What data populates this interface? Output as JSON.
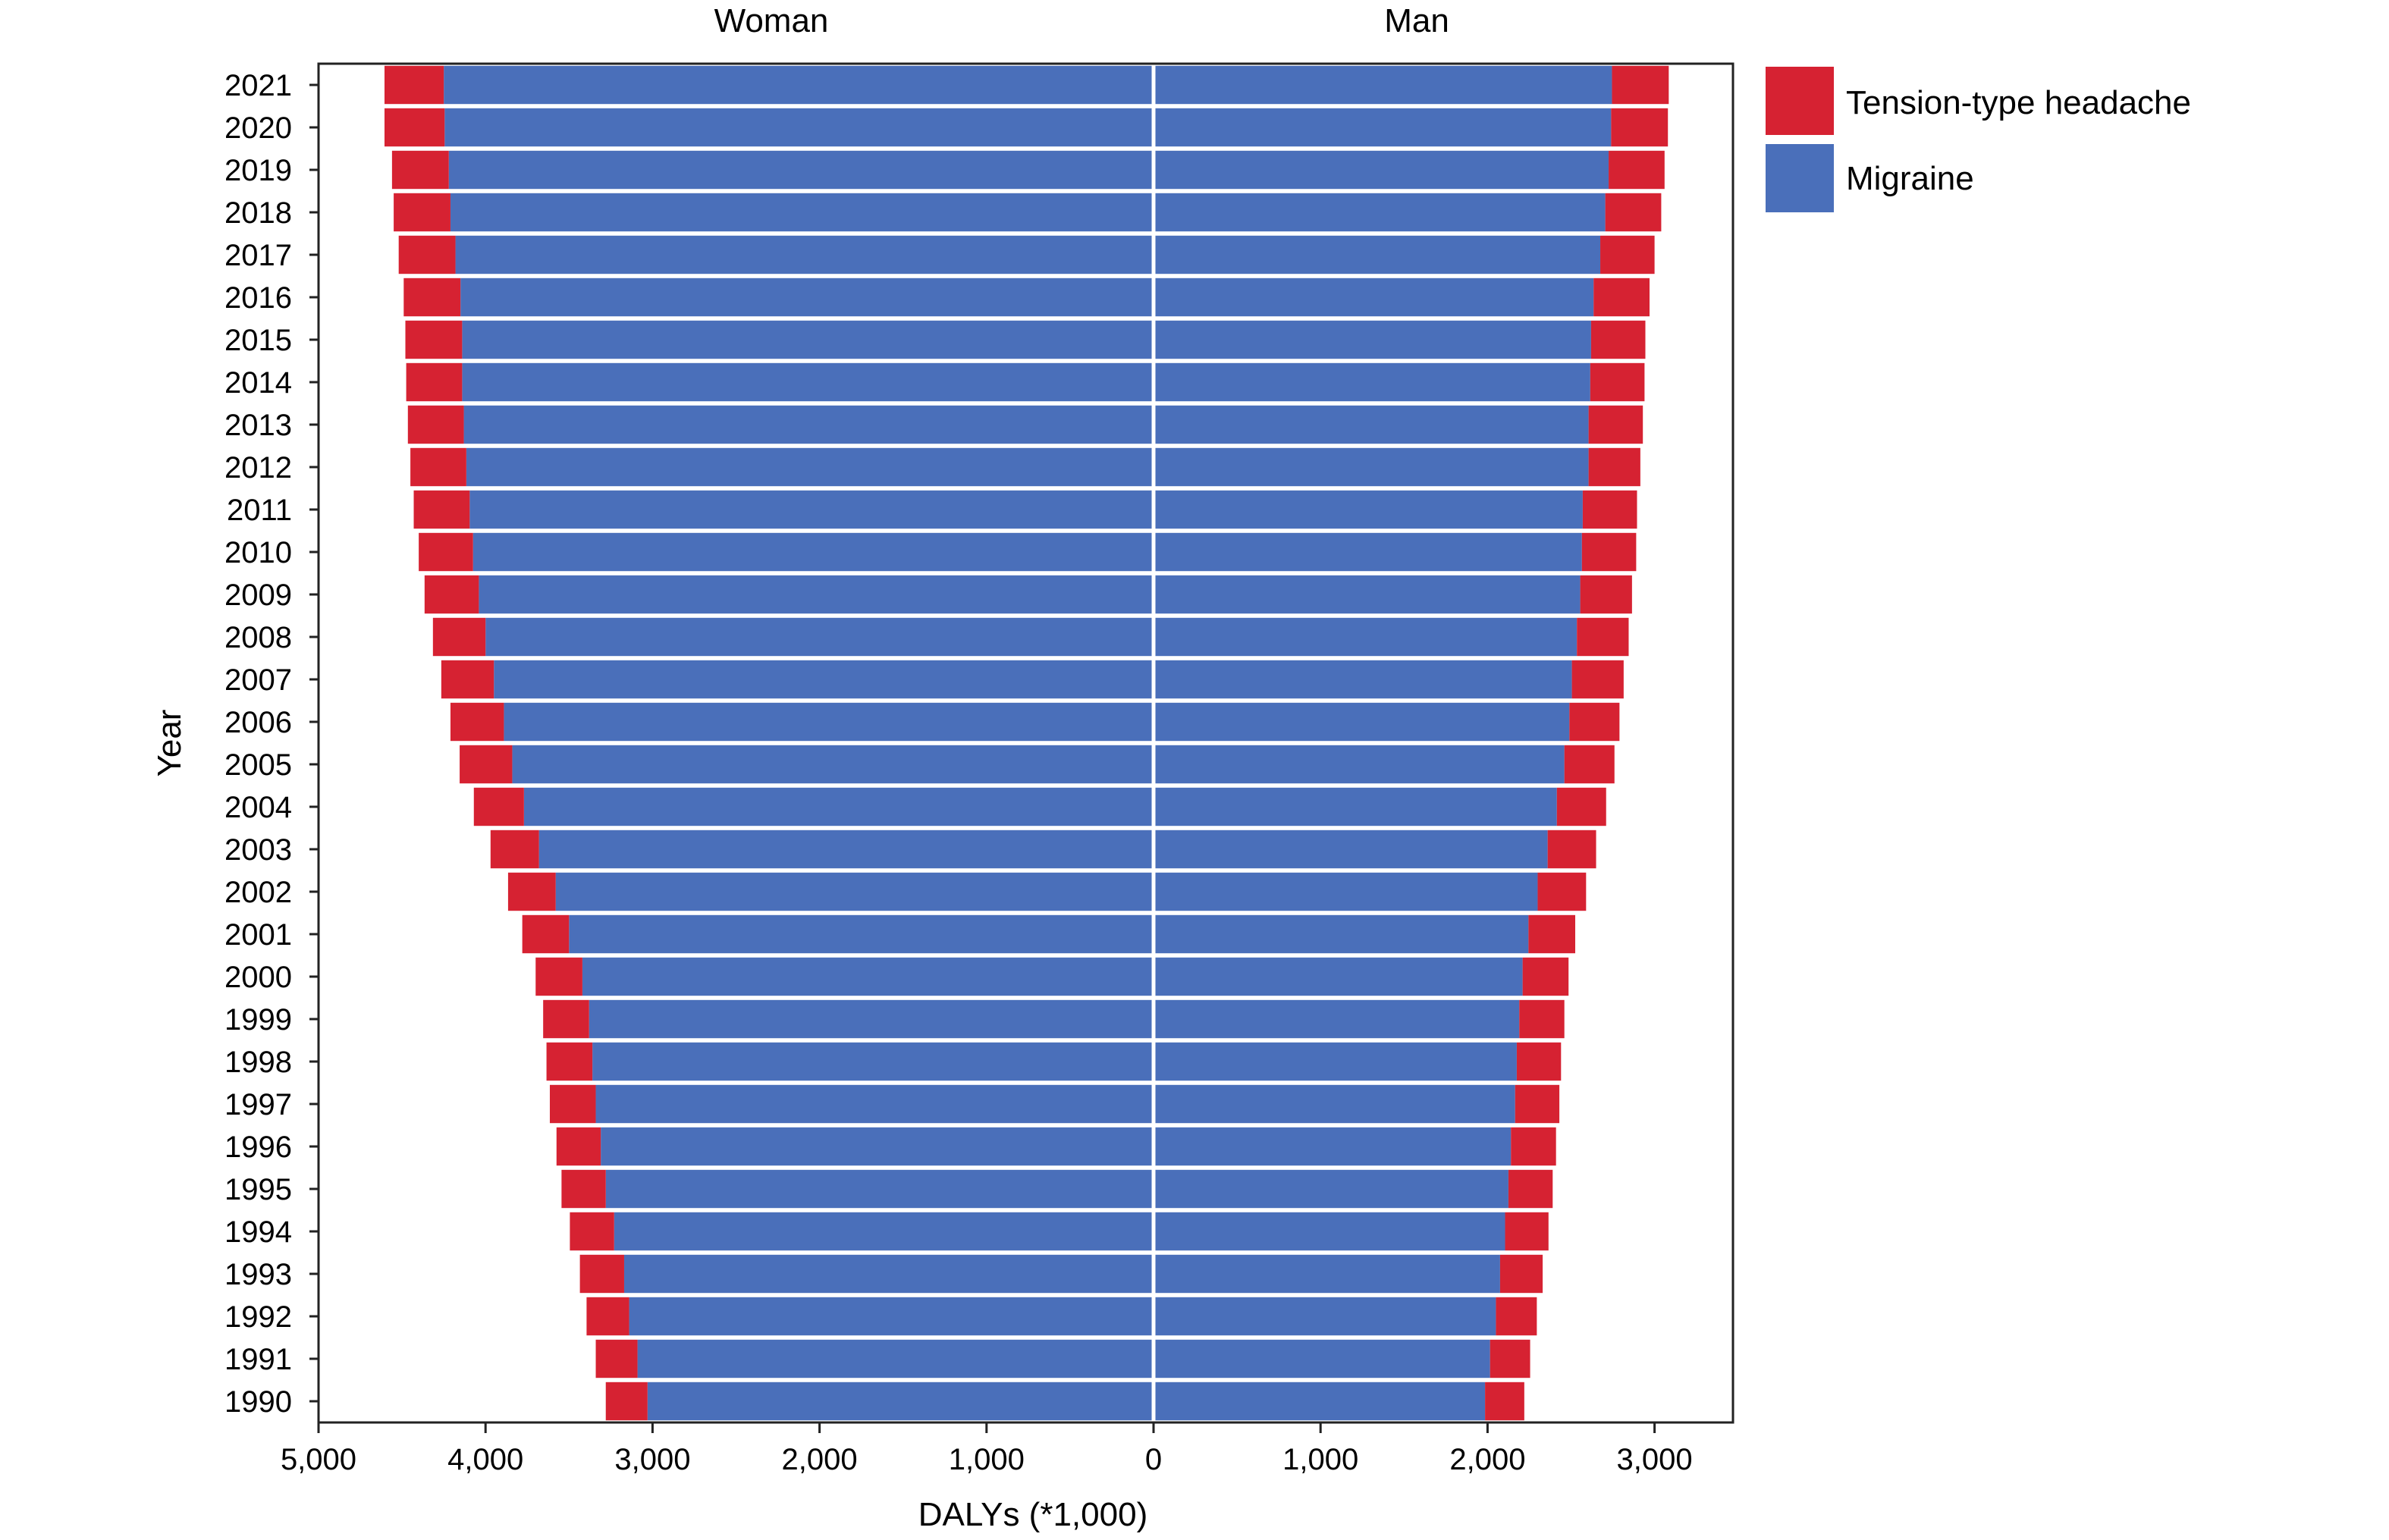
{
  "chart_data": {
    "type": "bar",
    "orientation": "horizontal",
    "layout": "back-to-back stacked",
    "panels": [
      "Woman",
      "Man"
    ],
    "xlabel": "DALYs (*1,000)",
    "ylabel": "Year",
    "x_ticks_left": [
      "5,000",
      "4,000",
      "3,000",
      "2,000",
      "1,000",
      "0"
    ],
    "x_ticks_right": [
      "1,000",
      "2,000",
      "3,000"
    ],
    "xlim_left": [
      0,
      5000
    ],
    "xlim_right": [
      0,
      3500
    ],
    "grid": false,
    "legend_position": "right",
    "categories": [
      "2021",
      "2020",
      "2019",
      "2018",
      "2017",
      "2016",
      "2015",
      "2014",
      "2013",
      "2012",
      "2011",
      "2010",
      "2009",
      "2008",
      "2007",
      "2006",
      "2005",
      "2004",
      "2003",
      "2002",
      "2001",
      "2000",
      "1999",
      "1998",
      "1997",
      "1996",
      "1995",
      "1994",
      "1993",
      "1992",
      "1991",
      "1990"
    ],
    "series": [
      {
        "name": "Tension-type headache",
        "color": "#d62232",
        "woman": [
          355,
          360,
          340,
          340,
          340,
          340,
          340,
          335,
          335,
          335,
          335,
          325,
          325,
          315,
          315,
          320,
          315,
          300,
          290,
          285,
          280,
          280,
          275,
          275,
          275,
          265,
          265,
          265,
          265,
          255,
          250,
          250
        ],
        "man": [
          340,
          340,
          335,
          335,
          325,
          335,
          325,
          325,
          325,
          310,
          325,
          325,
          310,
          310,
          310,
          300,
          300,
          295,
          290,
          290,
          280,
          275,
          270,
          265,
          265,
          270,
          265,
          260,
          255,
          245,
          240,
          235
        ]
      },
      {
        "name": "Migraine",
        "color": "#4a6fba",
        "woman": [
          4250,
          4245,
          4220,
          4210,
          4180,
          4150,
          4140,
          4140,
          4130,
          4115,
          4095,
          4075,
          4040,
          4000,
          3950,
          3890,
          3840,
          3770,
          3680,
          3580,
          3500,
          3420,
          3380,
          3360,
          3340,
          3310,
          3280,
          3230,
          3170,
          3140,
          3090,
          3030
        ],
        "man": [
          2745,
          2740,
          2725,
          2705,
          2675,
          2635,
          2620,
          2615,
          2605,
          2605,
          2570,
          2565,
          2555,
          2535,
          2505,
          2490,
          2460,
          2415,
          2360,
          2300,
          2245,
          2210,
          2190,
          2175,
          2165,
          2140,
          2125,
          2105,
          2075,
          2050,
          2015,
          1985
        ]
      }
    ]
  }
}
